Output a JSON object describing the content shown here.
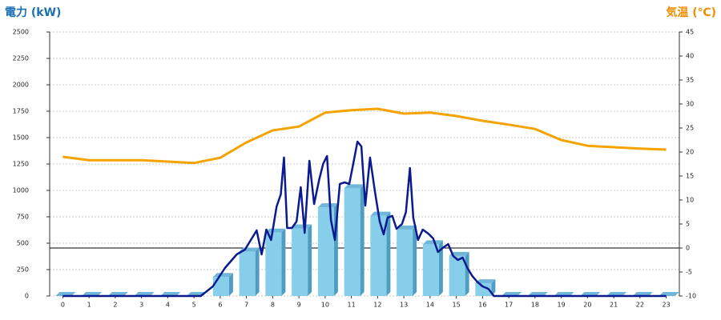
{
  "chart_data": {
    "type": "combo",
    "title": "電力 (kW)",
    "y2_title": "気温 (℃)",
    "categories": [
      "0",
      "1",
      "2",
      "3",
      "4",
      "5",
      "6",
      "7",
      "8",
      "9",
      "10",
      "11",
      "12",
      "13",
      "14",
      "15",
      "16",
      "17",
      "18",
      "19",
      "20",
      "21",
      "22",
      "23"
    ],
    "ylim": [
      0,
      2500
    ],
    "yticks": [
      0,
      250,
      500,
      750,
      1000,
      1250,
      1500,
      1750,
      2000,
      2250,
      2500
    ],
    "y2lim": [
      -10,
      45
    ],
    "y2ticks": [
      -10,
      -5,
      0,
      5,
      10,
      15,
      20,
      25,
      30,
      35,
      40,
      45
    ],
    "grid": true,
    "series": [
      {
        "type": "bar",
        "color": "#87ceeb",
        "values": [
          0,
          0,
          0,
          0,
          0,
          0,
          180,
          420,
          600,
          640,
          840,
          1020,
          760,
          630,
          490,
          380,
          120,
          0,
          0,
          0,
          0,
          0,
          0,
          0
        ]
      },
      {
        "type": "line",
        "color": "#0b1a8e",
        "x": [
          0,
          5.26,
          5.72,
          6.18,
          6.63,
          6.94,
          7.39,
          7.58,
          7.76,
          7.94,
          8.15,
          8.31,
          8.43,
          8.55,
          8.73,
          8.91,
          9.07,
          9.22,
          9.4,
          9.58,
          9.77,
          9.92,
          10.07,
          10.22,
          10.37,
          10.56,
          10.74,
          10.92,
          11.07,
          11.23,
          11.38,
          11.53,
          11.71,
          11.9,
          12.08,
          12.23,
          12.38,
          12.56,
          12.72,
          12.93,
          13.08,
          13.23,
          13.36,
          13.54,
          13.72,
          13.93,
          14.12,
          14.3,
          14.48,
          14.69,
          14.88,
          15.06,
          15.24,
          15.42,
          15.61,
          15.79,
          16,
          16.22,
          16.43,
          23
        ],
        "values": [
          0,
          0,
          91,
          265,
          394,
          439,
          621,
          394,
          629,
          530,
          848,
          962,
          1311,
          644,
          644,
          705,
          1030,
          598,
          1280,
          871,
          1098,
          1250,
          1326,
          720,
          530,
          1061,
          1076,
          1061,
          1250,
          1462,
          1417,
          856,
          1311,
          985,
          705,
          583,
          742,
          758,
          636,
          682,
          795,
          1212,
          742,
          530,
          629,
          591,
          545,
          417,
          455,
          492,
          379,
          341,
          364,
          265,
          189,
          136,
          91,
          68,
          0,
          0
        ]
      },
      {
        "type": "line",
        "axis": "y2",
        "color": "#f5a300",
        "values": [
          19.0,
          18.3,
          18.3,
          18.3,
          18.0,
          17.7,
          18.8,
          22.0,
          24.5,
          25.3,
          28.2,
          28.7,
          29.0,
          28.0,
          28.2,
          27.5,
          26.5,
          25.7,
          24.8,
          22.5,
          21.3,
          21.0,
          20.7,
          20.5
        ]
      }
    ]
  }
}
